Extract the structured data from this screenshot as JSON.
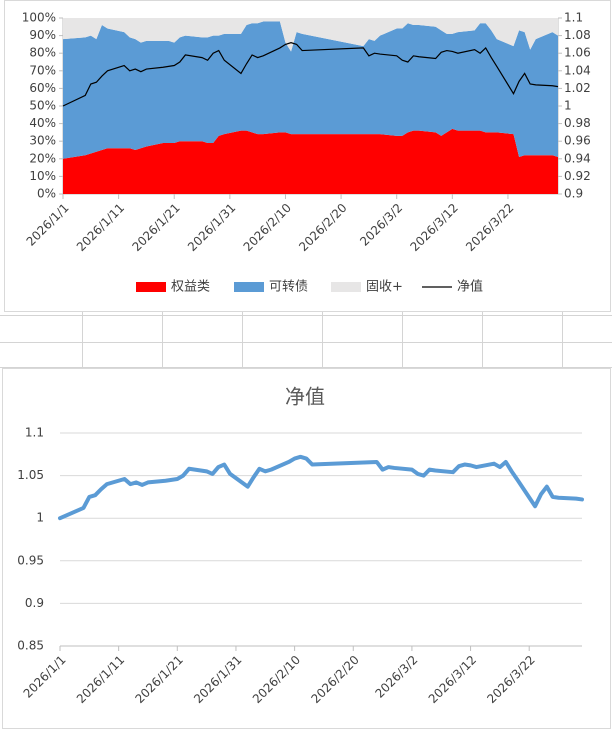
{
  "chart_data": [
    {
      "type": "area",
      "stacked": "percent",
      "legend": "bottom",
      "x": [
        "2026/1/1",
        "2026/1/5",
        "2026/1/6",
        "2026/1/7",
        "2026/1/8",
        "2026/1/9",
        "2026/1/12",
        "2026/1/13",
        "2026/1/14",
        "2026/1/15",
        "2026/1/16",
        "2026/1/19",
        "2026/1/20",
        "2026/1/21",
        "2026/1/22",
        "2026/1/23",
        "2026/1/26",
        "2026/1/27",
        "2026/1/28",
        "2026/1/29",
        "2026/1/30",
        "2026/2/2",
        "2026/2/3",
        "2026/2/4",
        "2026/2/5",
        "2026/2/6",
        "2026/2/9",
        "2026/2/10",
        "2026/2/11",
        "2026/2/12",
        "2026/2/13",
        "2026/2/24",
        "2026/2/25",
        "2026/2/26",
        "2026/2/27",
        "2026/3/2",
        "2026/3/3",
        "2026/3/4",
        "2026/3/5",
        "2026/3/6",
        "2026/3/9",
        "2026/3/10",
        "2026/3/11",
        "2026/3/12",
        "2026/3/13",
        "2026/3/16",
        "2026/3/17",
        "2026/3/18",
        "2026/3/19",
        "2026/3/20",
        "2026/3/23",
        "2026/3/24",
        "2026/3/25",
        "2026/3/26",
        "2026/3/27",
        "2026/3/30",
        "2026/3/31"
      ],
      "xlim": [
        "2026/1/1",
        "2026/3/31"
      ],
      "xticks": [
        "2026/1/1",
        "2026/1/11",
        "2026/1/21",
        "2026/1/31",
        "2026/2/10",
        "2026/2/20",
        "2026/3/2",
        "2026/3/12",
        "2026/3/22"
      ],
      "ylim": [
        0,
        100
      ],
      "yticks": [
        {
          "value": 0,
          "label": "0%"
        },
        {
          "value": 10,
          "label": "10%"
        },
        {
          "value": 20,
          "label": "20%"
        },
        {
          "value": 30,
          "label": "30%"
        },
        {
          "value": 40,
          "label": "40%"
        },
        {
          "value": 50,
          "label": "50%"
        },
        {
          "value": 60,
          "label": "60%"
        },
        {
          "value": 70,
          "label": "70%"
        },
        {
          "value": 80,
          "label": "80%"
        },
        {
          "value": 90,
          "label": "90%"
        },
        {
          "value": 100,
          "label": "100%"
        }
      ],
      "y2lim": [
        0.9,
        1.1
      ],
      "y2ticks": [
        0.9,
        0.92,
        0.94,
        0.96,
        0.98,
        1,
        1.02,
        1.04,
        1.06,
        1.08,
        1.1
      ],
      "series": [
        {
          "name": "权益类",
          "color": "#ff0000",
          "values": [
            20,
            22,
            23,
            24,
            25,
            26,
            26,
            26,
            25,
            26,
            27,
            29,
            29,
            29,
            30,
            30,
            30,
            29,
            29,
            33,
            34,
            36,
            36,
            35,
            34,
            34,
            35,
            35,
            34,
            34,
            34,
            34,
            34,
            34,
            34,
            33,
            33,
            35,
            36,
            36,
            35,
            33,
            35,
            37,
            36,
            36,
            36,
            35,
            35,
            35,
            34,
            21,
            22,
            22,
            22,
            22,
            21
          ]
        },
        {
          "name": "可转债",
          "color": "#5b9bd5",
          "values": [
            68,
            67,
            67,
            64,
            71,
            68,
            66,
            63,
            63,
            60,
            60,
            58,
            58,
            57,
            59,
            60,
            59,
            60,
            61,
            57,
            57,
            55,
            60,
            62,
            63,
            64,
            63,
            51,
            47,
            58,
            57,
            50,
            54,
            53,
            56,
            61,
            61,
            62,
            60,
            60,
            60,
            60,
            56,
            54,
            56,
            57,
            61,
            62,
            58,
            53,
            50,
            72,
            70,
            60,
            66,
            70,
            69
          ]
        },
        {
          "name": "固收+",
          "color": "#e7e6e6",
          "values": [
            12,
            11,
            10,
            12,
            4,
            6,
            8,
            11,
            12,
            14,
            13,
            13,
            13,
            14,
            11,
            10,
            11,
            11,
            10,
            10,
            9,
            9,
            4,
            3,
            3,
            2,
            2,
            14,
            19,
            8,
            9,
            16,
            12,
            13,
            10,
            6,
            6,
            3,
            4,
            4,
            5,
            7,
            9,
            9,
            8,
            7,
            3,
            3,
            7,
            12,
            16,
            7,
            8,
            18,
            12,
            8,
            10
          ]
        },
        {
          "name": "净值",
          "color": "#000000",
          "axis": "y2",
          "values": [
            1.0,
            1.012,
            1.025,
            1.027,
            1.034,
            1.04,
            1.046,
            1.04,
            1.042,
            1.039,
            1.042,
            1.044,
            1.045,
            1.046,
            1.05,
            1.058,
            1.055,
            1.052,
            1.06,
            1.063,
            1.052,
            1.037,
            1.048,
            1.058,
            1.055,
            1.057,
            1.066,
            1.07,
            1.072,
            1.07,
            1.063,
            1.066,
            1.057,
            1.06,
            1.059,
            1.057,
            1.052,
            1.05,
            1.057,
            1.056,
            1.054,
            1.061,
            1.063,
            1.062,
            1.06,
            1.064,
            1.06,
            1.066,
            1.055,
            1.045,
            1.014,
            1.028,
            1.037,
            1.025,
            1.024,
            1.023,
            1.022
          ]
        }
      ]
    },
    {
      "type": "line",
      "title": "净值",
      "grid": true,
      "color": "#5b9bd5",
      "x": [
        "2026/1/1",
        "2026/1/5",
        "2026/1/6",
        "2026/1/7",
        "2026/1/8",
        "2026/1/9",
        "2026/1/12",
        "2026/1/13",
        "2026/1/14",
        "2026/1/15",
        "2026/1/16",
        "2026/1/19",
        "2026/1/20",
        "2026/1/21",
        "2026/1/22",
        "2026/1/23",
        "2026/1/26",
        "2026/1/27",
        "2026/1/28",
        "2026/1/29",
        "2026/1/30",
        "2026/2/2",
        "2026/2/3",
        "2026/2/4",
        "2026/2/5",
        "2026/2/6",
        "2026/2/9",
        "2026/2/10",
        "2026/2/11",
        "2026/2/12",
        "2026/2/13",
        "2026/2/24",
        "2026/2/25",
        "2026/2/26",
        "2026/2/27",
        "2026/3/2",
        "2026/3/3",
        "2026/3/4",
        "2026/3/5",
        "2026/3/6",
        "2026/3/9",
        "2026/3/10",
        "2026/3/11",
        "2026/3/12",
        "2026/3/13",
        "2026/3/16",
        "2026/3/17",
        "2026/3/18",
        "2026/3/19",
        "2026/3/20",
        "2026/3/23",
        "2026/3/24",
        "2026/3/25",
        "2026/3/26",
        "2026/3/27",
        "2026/3/30",
        "2026/3/31"
      ],
      "values": [
        1.0,
        1.012,
        1.025,
        1.027,
        1.034,
        1.04,
        1.046,
        1.04,
        1.042,
        1.039,
        1.042,
        1.044,
        1.045,
        1.046,
        1.05,
        1.058,
        1.055,
        1.052,
        1.06,
        1.063,
        1.052,
        1.037,
        1.048,
        1.058,
        1.055,
        1.057,
        1.066,
        1.07,
        1.072,
        1.07,
        1.063,
        1.066,
        1.057,
        1.06,
        1.059,
        1.057,
        1.052,
        1.05,
        1.057,
        1.056,
        1.054,
        1.061,
        1.063,
        1.062,
        1.06,
        1.064,
        1.06,
        1.066,
        1.055,
        1.045,
        1.014,
        1.028,
        1.037,
        1.025,
        1.024,
        1.023,
        1.022
      ],
      "xlim": [
        "2026/1/1",
        "2026/3/31"
      ],
      "xticks": [
        "2026/1/1",
        "2026/1/11",
        "2026/1/21",
        "2026/1/31",
        "2026/2/10",
        "2026/2/20",
        "2026/3/2",
        "2026/3/12",
        "2026/3/22"
      ],
      "ylim": [
        0.85,
        1.1
      ],
      "yticks": [
        0.85,
        0.9,
        0.95,
        1,
        1.05,
        1.1
      ]
    }
  ]
}
